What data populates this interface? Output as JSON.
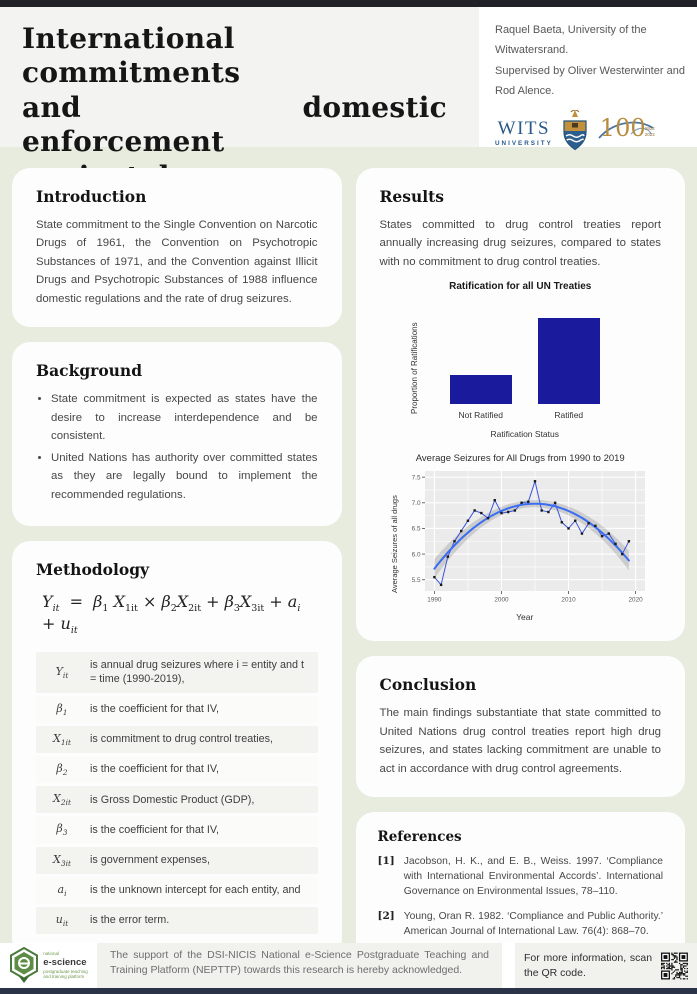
{
  "header": {
    "title_lines": [
      "International commitments",
      "and domestic enforcement",
      "against drugs."
    ],
    "author_line1": "Raquel Baeta, University of the Witwatersrand.",
    "author_line2": "Supervised by Oliver Westerwinter and Rod Alence.",
    "wits": {
      "name": "WITS",
      "sub": "UNIVERSITY",
      "centenary": "100",
      "years": [
        "1922",
        "2022"
      ]
    }
  },
  "sections": {
    "introduction": {
      "heading": "Introduction",
      "body": "State commitment to the Single Convention on Narcotic Drugs of 1961, the Convention on Psychotropic Substances of 1971, and the Convention against Illicit Drugs and Psychotropic Substances of 1988 influence domestic regulations and the rate of drug seizures."
    },
    "background": {
      "heading": "Background",
      "bullets": [
        "State commitment is expected as states have the desire to increase interdependence and be consistent.",
        "United Nations has authority over committed states as they are legally bound to implement the recommended regulations."
      ]
    },
    "methodology": {
      "heading": "Methodology",
      "equation_html": "<i>Y<sub>it</sub></i>&nbsp; = &nbsp;<i>β</i><sub>1</sub> <i>X</i><sub>1it</sub> × <i>β</i><sub>2</sub><i>X</i><sub>2it</sub> + <i>β</i><sub>3</sub><i>X</i><sub>3it</sub> + <i>a<sub>i</sub></i> + <i>u<sub>it</sub></i>",
      "terms": [
        {
          "symbol_html": "Y<sub>it</sub>",
          "description": "is annual drug seizures where i = entity and t = time (1990-2019),"
        },
        {
          "symbol_html": "β<sub>1</sub>",
          "description": "is the coefficient for that IV,"
        },
        {
          "symbol_html": "X<sub>1it</sub>",
          "description": "is commitment to drug control treaties,"
        },
        {
          "symbol_html": "β<sub>2</sub>",
          "description": "is the coefficient for that IV,"
        },
        {
          "symbol_html": "X<sub>2it</sub>",
          "description": "is Gross Domestic Product (GDP),"
        },
        {
          "symbol_html": "β<sub>3</sub>",
          "description": "is the coefficient for that IV,"
        },
        {
          "symbol_html": "X<sub>3it</sub>",
          "description": "is government expenses,"
        },
        {
          "symbol_html": "a<sub>i</sub>",
          "description": "is the unknown intercept for each entity, and"
        },
        {
          "symbol_html": "u<sub>it</sub>",
          "description": "is the error term."
        }
      ]
    },
    "results": {
      "heading": "Results",
      "body": "States committed to drug control treaties report annually increasing drug seizures, compared to states with no commitment to drug control treaties."
    },
    "conclusion": {
      "heading": "Conclusion",
      "body": "The main findings substantiate that state committed to United Nations drug control treaties report high drug seizures, and states lacking commitment are unable to act in accordance with drug control agreements."
    },
    "references": {
      "heading": "References",
      "items": [
        {
          "marker": "[1]",
          "text": "Jacobson, H. K., and E. B., Weiss. 1997. ‘Compliance with International Environmental Accords’. International Governance on Environmental Issues, 78–110."
        },
        {
          "marker": "[2]",
          "text": "Young, Oran R. 1982. ‘Compliance and Public Authority.’ American Journal of International Law. 76(4): 868–70."
        }
      ]
    }
  },
  "footer": {
    "logo": {
      "national": "national",
      "name": "e-science",
      "line1": "postgraduate teaching",
      "line2": "and training platform"
    },
    "support_text": "The support of the DSI-NICIS National e-Science Postgraduate Teaching and Training Platform (NEPTTP) towards this research is hereby acknowledged.",
    "qr_text": "For more information, scan the QR code."
  },
  "colors": {
    "page_background": "#e7ecdf",
    "card_background": "#fdfdfd",
    "top_bar": "#212227",
    "bottom_bar": "#2b3348",
    "wits_blue": "#2a5a8c",
    "centenary_gold": "#b78c3e",
    "escience_green": "#5e8c46"
  },
  "chart_data": [
    {
      "type": "bar",
      "title": "Ratification for all UN Treaties",
      "categories": [
        "Not Ratified",
        "Ratified"
      ],
      "values": [
        0.28,
        0.82
      ],
      "xlabel": "Ratification Status",
      "ylabel": "Proportion of Ratifications",
      "ylim": [
        0,
        1
      ],
      "bar_color": "#1a1a9c"
    },
    {
      "type": "line",
      "title": "Average Seizures for All Drugs from 1990 to 2019",
      "xlabel": "Year",
      "ylabel": "Average Seizures of all drugs",
      "x": [
        1990,
        1991,
        1992,
        1993,
        1994,
        1995,
        1996,
        1997,
        1998,
        1999,
        2000,
        2001,
        2002,
        2003,
        2004,
        2005,
        2006,
        2007,
        2008,
        2009,
        2010,
        2011,
        2012,
        2013,
        2014,
        2015,
        2016,
        2017,
        2018,
        2019
      ],
      "y": [
        5.55,
        5.4,
        5.95,
        6.25,
        6.45,
        6.65,
        6.85,
        6.8,
        6.7,
        7.05,
        6.8,
        6.82,
        6.85,
        7.0,
        7.02,
        7.42,
        6.85,
        6.82,
        7.0,
        6.62,
        6.5,
        6.65,
        6.4,
        6.6,
        6.55,
        6.35,
        6.4,
        6.2,
        6.0,
        6.25
      ],
      "ylim": [
        5.28,
        7.62
      ],
      "yticks": [
        5.5,
        6.0,
        6.5,
        7.0,
        7.5
      ],
      "xticks": [
        1990,
        2000,
        2010,
        2020
      ],
      "grid": true,
      "background": "#ebebeb",
      "line_color": "#3d55dc",
      "smooth_color": "#3a6df2",
      "point_color": "#1a1a1a",
      "ci_color": "rgba(0,0,0,0.13)",
      "smooth": "loess/quadratic with confidence band"
    }
  ]
}
